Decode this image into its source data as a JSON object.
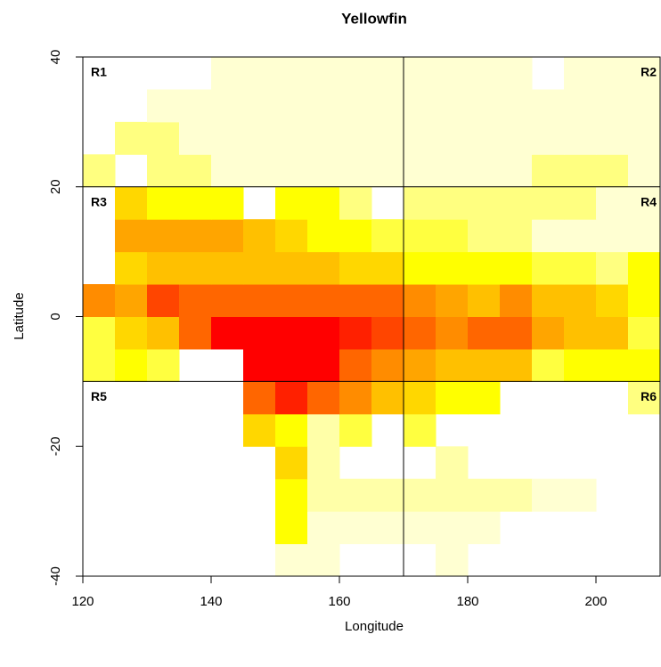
{
  "chart_data": {
    "type": "heatmap",
    "title": "Yellowfin",
    "x_label": "Longitude",
    "y_label": "Latitude",
    "x_bins": [
      120,
      125,
      130,
      135,
      140,
      145,
      150,
      155,
      160,
      165,
      170,
      175,
      180,
      185,
      190,
      195,
      200,
      205,
      210
    ],
    "y_bins": [
      -40,
      -35,
      -30,
      -25,
      -20,
      -15,
      -10,
      -5,
      0,
      5,
      10,
      15,
      20,
      25,
      30,
      35,
      40
    ],
    "z": [
      [
        null,
        null,
        null,
        null,
        null,
        null,
        1,
        1,
        null,
        null,
        null,
        1,
        null,
        null,
        null,
        null,
        null,
        null
      ],
      [
        null,
        null,
        null,
        null,
        null,
        null,
        5,
        1,
        1,
        1,
        1,
        1,
        1,
        null,
        null,
        null,
        null,
        null
      ],
      [
        null,
        null,
        null,
        null,
        null,
        null,
        5,
        2,
        2,
        2,
        2,
        2,
        2,
        2,
        1,
        1,
        null,
        null
      ],
      [
        null,
        null,
        null,
        null,
        null,
        null,
        6,
        2,
        null,
        null,
        null,
        2,
        null,
        null,
        null,
        null,
        null,
        null
      ],
      [
        null,
        null,
        null,
        null,
        null,
        6,
        5,
        2,
        4,
        null,
        4,
        null,
        null,
        null,
        null,
        null,
        null,
        null
      ],
      [
        null,
        null,
        null,
        null,
        null,
        10,
        12,
        10,
        9,
        7,
        6,
        5,
        5,
        null,
        null,
        null,
        null,
        3
      ],
      [
        4,
        5,
        4,
        null,
        null,
        13,
        13,
        13,
        10,
        9,
        8,
        7,
        7,
        7,
        4,
        5,
        5,
        5
      ],
      [
        4,
        6,
        7,
        10,
        13,
        13,
        13,
        13,
        12,
        11,
        10,
        9,
        10,
        10,
        8,
        7,
        7,
        4
      ],
      [
        9,
        8,
        11,
        10,
        10,
        10,
        10,
        10,
        10,
        10,
        9,
        8,
        7,
        9,
        7,
        7,
        6,
        5
      ],
      [
        null,
        6,
        7,
        7,
        7,
        7,
        7,
        7,
        6,
        6,
        5,
        5,
        5,
        5,
        4,
        4,
        3,
        5
      ],
      [
        null,
        8,
        8,
        8,
        8,
        7,
        6,
        5,
        5,
        4,
        4,
        4,
        3,
        3,
        1,
        1,
        1,
        1
      ],
      [
        null,
        6,
        5,
        5,
        5,
        null,
        5,
        5,
        3,
        null,
        3,
        3,
        3,
        3,
        3,
        3,
        1,
        1
      ],
      [
        3,
        null,
        3,
        3,
        1,
        1,
        1,
        1,
        1,
        1,
        1,
        1,
        1,
        1,
        3,
        3,
        3,
        1
      ],
      [
        null,
        3,
        3,
        1,
        1,
        1,
        1,
        1,
        1,
        1,
        1,
        1,
        1,
        1,
        1,
        1,
        1,
        1
      ],
      [
        null,
        null,
        1,
        1,
        1,
        1,
        1,
        1,
        1,
        1,
        1,
        1,
        1,
        1,
        1,
        1,
        1,
        1
      ],
      [
        null,
        null,
        null,
        null,
        1,
        1,
        1,
        1,
        1,
        1,
        1,
        1,
        1,
        1,
        null,
        1,
        1,
        1
      ]
    ],
    "palette": [
      "#ffffff",
      "#ffffd2",
      "#ffffa8",
      "#ffff80",
      "#ffff40",
      "#ffff00",
      "#ffd700",
      "#ffc000",
      "#ffa500",
      "#ff8c00",
      "#ff6600",
      "#ff4500",
      "#ff2000",
      "#ff0000"
    ],
    "xlim": [
      120,
      210
    ],
    "ylim": [
      -40,
      40
    ],
    "xticks": [
      120,
      140,
      160,
      180,
      200
    ],
    "yticks": [
      -40,
      -20,
      0,
      20,
      40
    ],
    "dividers": {
      "x": [
        170
      ],
      "y": [
        20,
        -10
      ]
    },
    "regions": [
      "R1",
      "R2",
      "R3",
      "R4",
      "R5",
      "R6"
    ]
  }
}
